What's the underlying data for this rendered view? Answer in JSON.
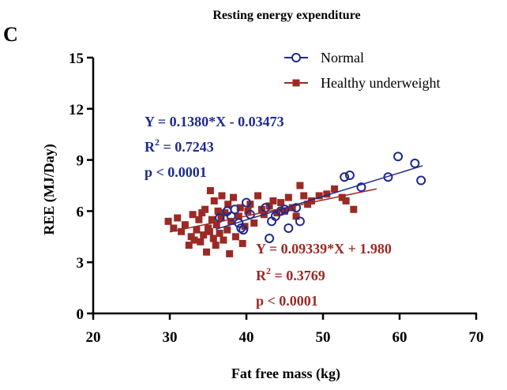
{
  "panel_label": "C",
  "chart_data": {
    "type": "scatter",
    "title": "Resting energy expenditure",
    "xlabel": "Fat free mass (kg)",
    "ylabel": "REE (MJ/Day)",
    "xlim": [
      20,
      70
    ],
    "ylim": [
      0,
      15
    ],
    "xticks": [
      "20",
      "30",
      "40",
      "50",
      "60",
      "70"
    ],
    "yticks": [
      "0",
      "3",
      "6",
      "9",
      "12",
      "15"
    ],
    "legend_position": "top-right",
    "series": [
      {
        "name": "Normal",
        "marker": "open-circle",
        "color": "#1f2a8c",
        "equation": "Y = 0.1380*X - 0.03473",
        "r2_label": "R",
        "r2_sup": "2",
        "r2_value": " = 0.7243",
        "p_value": "p < 0.0001",
        "fit": {
          "slope": 0.138,
          "intercept": -0.03473,
          "x_range": [
            36,
            63
          ]
        },
        "points": [
          [
            36.5,
            5.6
          ],
          [
            37.5,
            6.0
          ],
          [
            38.0,
            5.7
          ],
          [
            38.5,
            6.1
          ],
          [
            39.0,
            5.3
          ],
          [
            39.3,
            5.0
          ],
          [
            39.6,
            4.9
          ],
          [
            40.0,
            6.5
          ],
          [
            40.5,
            5.8
          ],
          [
            42.5,
            6.2
          ],
          [
            43.0,
            4.4
          ],
          [
            43.3,
            5.4
          ],
          [
            43.8,
            5.7
          ],
          [
            44.5,
            6.0
          ],
          [
            45.0,
            6.1
          ],
          [
            45.5,
            5.0
          ],
          [
            46.5,
            6.2
          ],
          [
            47.0,
            5.4
          ],
          [
            52.8,
            8.0
          ],
          [
            53.5,
            8.1
          ],
          [
            55.0,
            7.4
          ],
          [
            58.5,
            8.0
          ],
          [
            59.8,
            9.2
          ],
          [
            62.0,
            8.8
          ],
          [
            62.8,
            7.8
          ]
        ]
      },
      {
        "name": "Healthy underweight",
        "marker": "filled-square",
        "color": "#9b2a24",
        "equation": "Y = 0.09339*X + 1.980",
        "r2_label": "R",
        "r2_sup": "2",
        "r2_value": " = 0.3769",
        "p_value": "p < 0.0001",
        "fit": {
          "slope": 0.09339,
          "intercept": 1.98,
          "x_range": [
            30,
            57
          ]
        },
        "points": [
          [
            29.8,
            5.4
          ],
          [
            30.5,
            5.0
          ],
          [
            31.0,
            5.6
          ],
          [
            31.5,
            4.8
          ],
          [
            32.0,
            5.2
          ],
          [
            32.5,
            4.0
          ],
          [
            32.8,
            4.5
          ],
          [
            33.0,
            5.8
          ],
          [
            33.2,
            4.3
          ],
          [
            33.5,
            4.9
          ],
          [
            33.8,
            5.5
          ],
          [
            34.0,
            4.2
          ],
          [
            34.2,
            5.9
          ],
          [
            34.4,
            4.6
          ],
          [
            34.6,
            6.1
          ],
          [
            34.8,
            3.6
          ],
          [
            35.0,
            5.0
          ],
          [
            35.2,
            4.8
          ],
          [
            35.3,
            7.2
          ],
          [
            35.5,
            5.5
          ],
          [
            35.7,
            4.4
          ],
          [
            35.8,
            6.6
          ],
          [
            36.0,
            4.0
          ],
          [
            36.1,
            5.2
          ],
          [
            36.3,
            6.0
          ],
          [
            36.5,
            4.7
          ],
          [
            36.7,
            5.6
          ],
          [
            36.8,
            6.9
          ],
          [
            37.0,
            4.3
          ],
          [
            37.2,
            5.9
          ],
          [
            37.5,
            4.9
          ],
          [
            37.6,
            6.4
          ],
          [
            37.8,
            3.5
          ],
          [
            38.0,
            5.4
          ],
          [
            38.3,
            6.8
          ],
          [
            38.6,
            4.5
          ],
          [
            39.0,
            5.7
          ],
          [
            39.2,
            6.2
          ],
          [
            39.5,
            4.1
          ],
          [
            39.8,
            5.1
          ],
          [
            40.2,
            6.0
          ],
          [
            40.5,
            6.4
          ],
          [
            41.0,
            5.3
          ],
          [
            41.5,
            6.9
          ],
          [
            42.0,
            6.1
          ],
          [
            42.3,
            5.8
          ],
          [
            43.0,
            6.3
          ],
          [
            43.5,
            6.6
          ],
          [
            44.0,
            5.9
          ],
          [
            44.5,
            6.5
          ],
          [
            45.0,
            6.0
          ],
          [
            45.5,
            6.8
          ],
          [
            46.0,
            6.2
          ],
          [
            46.5,
            5.7
          ],
          [
            47.0,
            7.5
          ],
          [
            47.5,
            6.9
          ],
          [
            48.0,
            6.4
          ],
          [
            48.5,
            6.6
          ],
          [
            49.5,
            6.9
          ],
          [
            50.5,
            7.0
          ],
          [
            51.5,
            7.3
          ],
          [
            52.5,
            6.8
          ],
          [
            53.0,
            6.6
          ],
          [
            54.0,
            6.1
          ]
        ]
      }
    ]
  }
}
